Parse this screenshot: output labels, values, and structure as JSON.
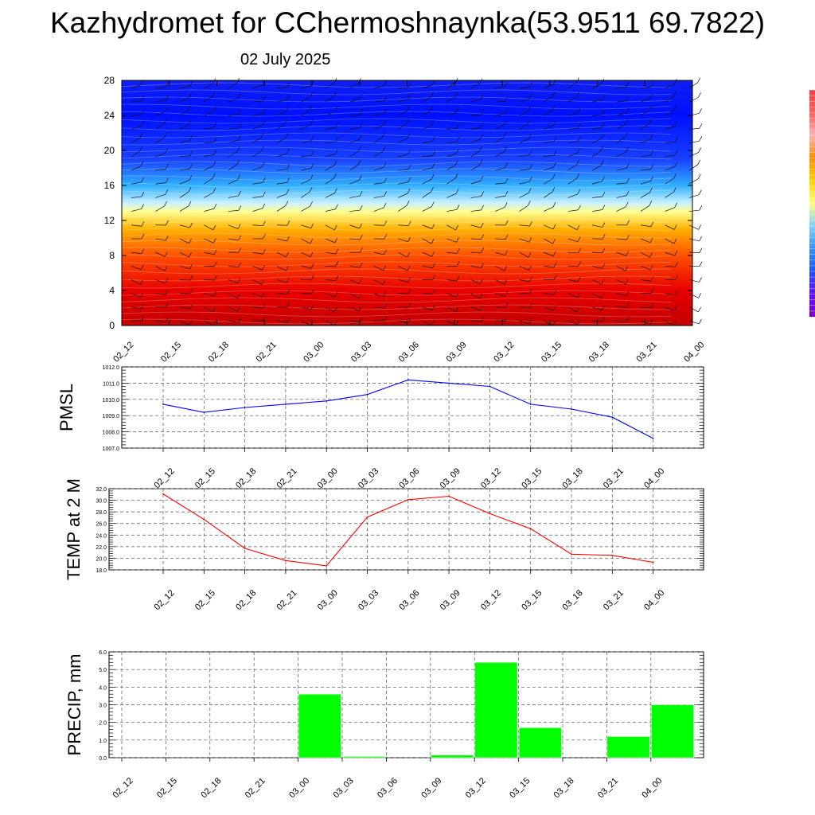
{
  "title": "Kazhydromet for CChermoshnaynka(53.9511 69.7822)",
  "date": "02 July 2025",
  "time_labels": [
    "02_12",
    "02_15",
    "02_18",
    "02_21",
    "03_00",
    "03_03",
    "03_06",
    "03_09",
    "03_12",
    "03_15",
    "03_18",
    "03_21",
    "04_00"
  ],
  "colors": {
    "pmsl": "#0000ff",
    "temp": "#ff0000",
    "precip": "#00ff00"
  },
  "chart_data": [
    {
      "type": "heatmap",
      "title": "",
      "x": [
        "02_12",
        "02_15",
        "02_18",
        "02_21",
        "03_00",
        "03_03",
        "03_06",
        "03_09",
        "03_12",
        "03_15",
        "03_18",
        "03_21",
        "04_00"
      ],
      "y_ticks": [
        0,
        4,
        8,
        12,
        16,
        20,
        24,
        28
      ],
      "ylim": [
        0,
        28
      ],
      "gradient_bands": [
        {
          "y": 0,
          "color": "#c40000"
        },
        {
          "y": 4,
          "color": "#e80000"
        },
        {
          "y": 8,
          "color": "#ff5000"
        },
        {
          "y": 11,
          "color": "#ffb000"
        },
        {
          "y": 13,
          "color": "#ffff90"
        },
        {
          "y": 14,
          "color": "#c8f0ff"
        },
        {
          "y": 16,
          "color": "#30b0ff"
        },
        {
          "y": 19,
          "color": "#1840ff"
        },
        {
          "y": 24,
          "color": "#0010ff"
        },
        {
          "y": 28,
          "color": "#1020f0"
        }
      ],
      "note": "wind barbs overlaid"
    },
    {
      "type": "line",
      "ylabel": "PMSL",
      "x": [
        "02_12",
        "02_15",
        "02_18",
        "02_21",
        "03_00",
        "03_03",
        "03_06",
        "03_09",
        "03_12",
        "03_15",
        "03_18",
        "03_21",
        "04_00"
      ],
      "values": [
        1009.7,
        1009.2,
        1009.5,
        1009.7,
        1009.9,
        1010.3,
        1011.2,
        1011.0,
        1010.8,
        1009.7,
        1009.4,
        1008.9,
        1007.6
      ],
      "ylim": [
        1007.0,
        1012.0
      ],
      "y_ticks": [
        "1007.0",
        "1008.0",
        "1009.0",
        "1010.0",
        "1011.0",
        "1012.0"
      ],
      "grid": true
    },
    {
      "type": "line",
      "ylabel": "TEMP at 2 M",
      "x": [
        "02_12",
        "02_15",
        "02_18",
        "02_21",
        "03_00",
        "03_03",
        "03_06",
        "03_09",
        "03_12",
        "03_15",
        "03_18",
        "03_21",
        "04_00"
      ],
      "values": [
        31.1,
        26.7,
        21.7,
        19.6,
        18.7,
        27.1,
        30.1,
        30.7,
        27.7,
        25.1,
        20.7,
        20.5,
        19.3
      ],
      "ylim": [
        18.0,
        32.0
      ],
      "y_ticks": [
        "18.0",
        "20.0",
        "22.0",
        "24.0",
        "26.0",
        "28.0",
        "30.0",
        "32.0"
      ],
      "grid": true
    },
    {
      "type": "bar",
      "ylabel": "PRECIP, mm",
      "categories": [
        "02_12",
        "02_15",
        "02_18",
        "02_21",
        "03_00",
        "03_03",
        "03_06",
        "03_09",
        "03_12",
        "03_15",
        "03_18",
        "03_21",
        "04_00"
      ],
      "values": [
        0.0,
        0.0,
        0.0,
        0.0,
        3.6,
        0.07,
        0.0,
        0.15,
        5.4,
        1.7,
        0.0,
        1.2,
        3.0
      ],
      "ylim": [
        0.0,
        6.0
      ],
      "y_ticks": [
        "0.0",
        "1.0",
        "2.0",
        "3.0",
        "4.0",
        "5.0",
        "6.0"
      ],
      "grid": true
    }
  ],
  "colorbar": {
    "colors": [
      "#f04040",
      "#ff6060",
      "#ffb0b0",
      "#ff9000",
      "#ffd000",
      "#ffff80",
      "#80d0ff",
      "#3090ff",
      "#2050ff",
      "#6010ff",
      "#8000c0"
    ]
  }
}
